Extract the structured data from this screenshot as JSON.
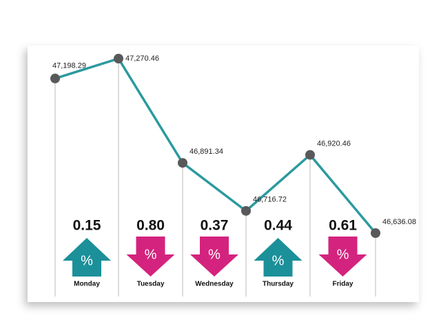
{
  "chart_data": {
    "type": "line",
    "values": [
      47198.29,
      47270.46,
      46891.34,
      46716.72,
      46920.46,
      46636.08
    ],
    "value_labels": [
      "47,198.29",
      "47,270.46",
      "46,891.34",
      "46,716.72",
      "46,920.46",
      "46,636.08"
    ],
    "color": "#2b9a9e",
    "point_color": "#58595b",
    "changes": {
      "categories": [
        "Monday",
        "Tuesday",
        "Wednesday",
        "Thursday",
        "Friday"
      ],
      "values": [
        0.15,
        0.8,
        0.37,
        0.44,
        0.61
      ],
      "value_labels": [
        "0.15",
        "0.80",
        "0.37",
        "0.44",
        "0.61"
      ],
      "direction": [
        "up",
        "down",
        "down",
        "up",
        "down"
      ],
      "symbol": "%",
      "up_color": "#1b9099",
      "down_color": "#d4237e"
    }
  }
}
